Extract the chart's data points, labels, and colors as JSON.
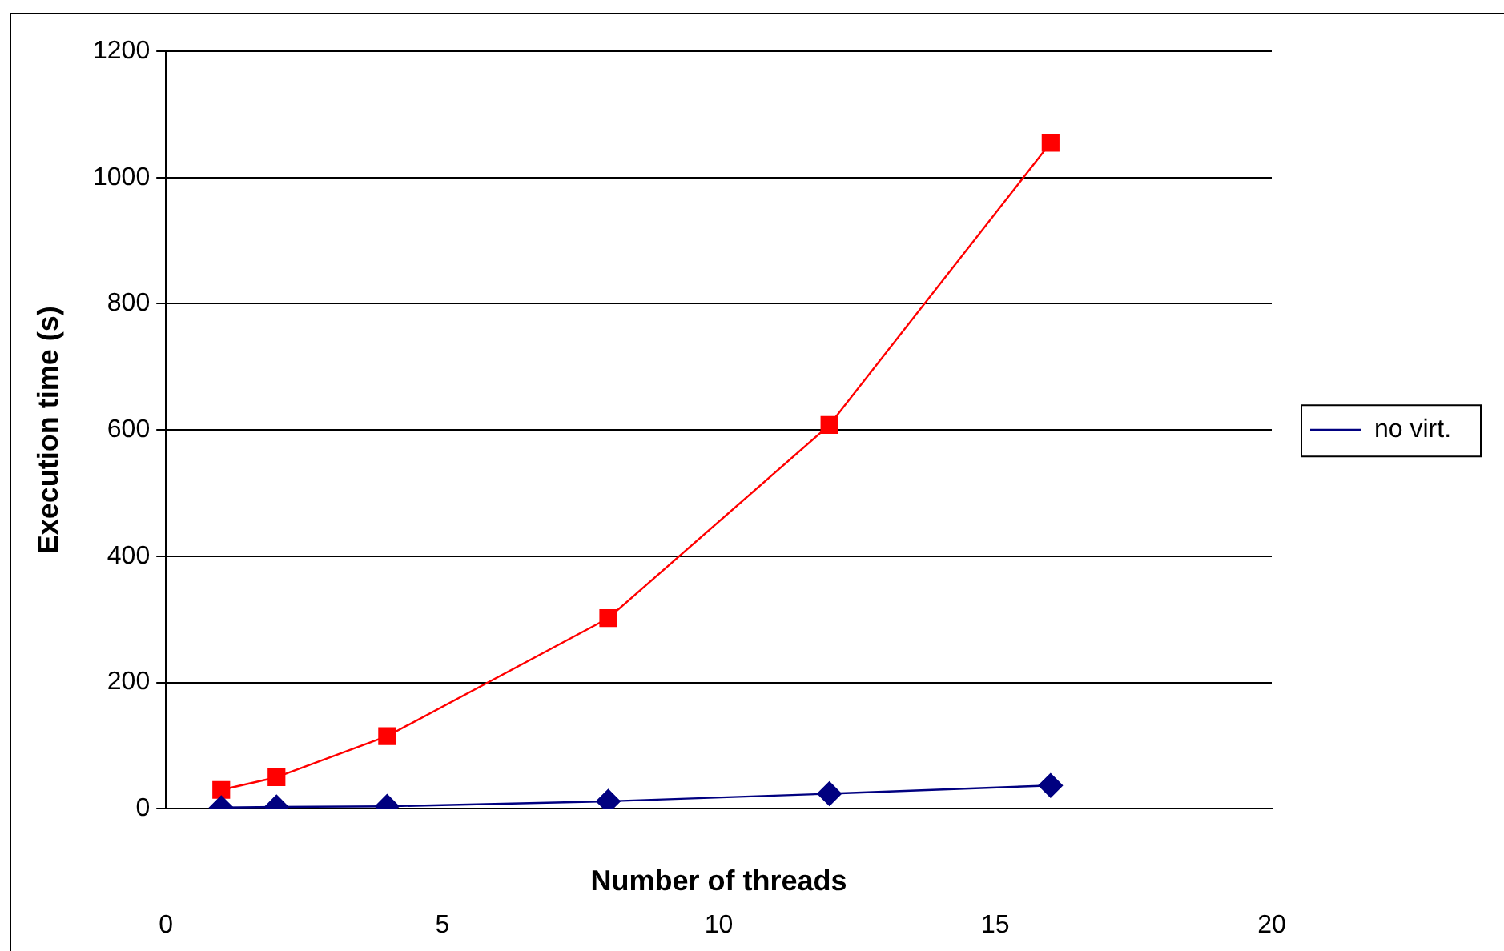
{
  "chart_data": {
    "type": "line",
    "xlabel": "Number of threads",
    "ylabel": "Execution time (s)",
    "xlim": [
      0,
      20
    ],
    "xticks": [
      0,
      5,
      10,
      15,
      20
    ],
    "ylim": [
      0,
      1200
    ],
    "yticks": [
      0,
      200,
      400,
      600,
      800,
      1000,
      1200
    ],
    "grid": "y",
    "legend": "right",
    "series": [
      {
        "name": "no virt.",
        "color": "#000080",
        "marker": "diamond",
        "x": [
          1,
          2,
          4,
          8,
          12,
          16
        ],
        "values": [
          2,
          3,
          4,
          12,
          24,
          37
        ]
      },
      {
        "color": "#ff0000",
        "marker": "square",
        "x": [
          1,
          2,
          4,
          8,
          12,
          16
        ],
        "values": [
          30,
          50,
          115,
          302,
          608,
          1055
        ]
      }
    ]
  }
}
